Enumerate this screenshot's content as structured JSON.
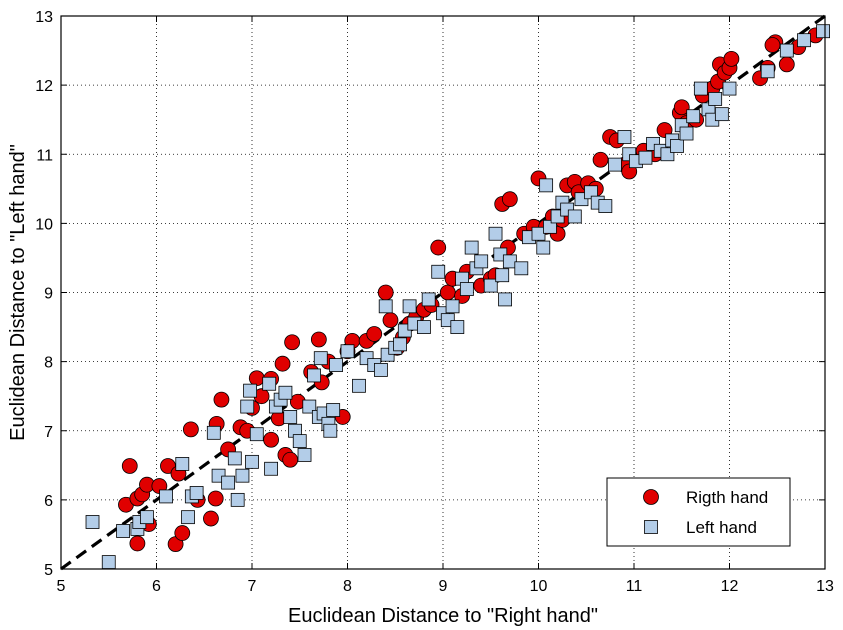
{
  "chart_data": {
    "type": "scatter",
    "title": "",
    "xlabel": "Euclidean Distance to \"Right hand\"",
    "ylabel": "Euclidean Distance to \"Left hand\"",
    "xlim": [
      5,
      13
    ],
    "ylim": [
      5,
      13
    ],
    "xticks": [
      "5",
      "6",
      "7",
      "8",
      "9",
      "10",
      "11",
      "12",
      "13"
    ],
    "yticks": [
      "5",
      "6",
      "7",
      "8",
      "9",
      "10",
      "11",
      "12",
      "13"
    ],
    "grid": true,
    "legend_position": "bottom-right",
    "reference_line": {
      "style": "dashed",
      "color": "#000000",
      "from": [
        5,
        5
      ],
      "to": [
        13,
        13
      ]
    },
    "series": [
      {
        "name": "Rigth hand",
        "marker": "circle",
        "color": "#e00000",
        "points": [
          [
            5.72,
            6.49
          ],
          [
            5.68,
            5.93
          ],
          [
            5.8,
            6.02
          ],
          [
            5.85,
            6.08
          ],
          [
            5.9,
            6.22
          ],
          [
            6.03,
            6.2
          ],
          [
            5.92,
            5.65
          ],
          [
            5.8,
            5.37
          ],
          [
            6.12,
            6.49
          ],
          [
            6.23,
            6.38
          ],
          [
            6.2,
            5.36
          ],
          [
            6.27,
            5.52
          ],
          [
            6.36,
            7.02
          ],
          [
            6.43,
            6.0
          ],
          [
            6.57,
            5.73
          ],
          [
            6.62,
            6.02
          ],
          [
            6.63,
            7.1
          ],
          [
            6.68,
            7.45
          ],
          [
            6.75,
            6.73
          ],
          [
            6.88,
            7.05
          ],
          [
            6.95,
            7.0
          ],
          [
            7.0,
            7.33
          ],
          [
            7.05,
            7.76
          ],
          [
            7.1,
            7.5
          ],
          [
            7.2,
            7.75
          ],
          [
            7.2,
            6.87
          ],
          [
            7.28,
            7.18
          ],
          [
            7.32,
            7.97
          ],
          [
            7.35,
            6.65
          ],
          [
            7.42,
            8.28
          ],
          [
            7.4,
            6.58
          ],
          [
            7.48,
            7.42
          ],
          [
            7.62,
            7.85
          ],
          [
            7.73,
            7.7
          ],
          [
            7.8,
            8.0
          ],
          [
            7.7,
            8.32
          ],
          [
            7.95,
            7.2
          ],
          [
            8.0,
            8.15
          ],
          [
            8.05,
            8.3
          ],
          [
            8.2,
            8.3
          ],
          [
            8.28,
            8.4
          ],
          [
            8.4,
            9.0
          ],
          [
            8.45,
            8.6
          ],
          [
            8.52,
            8.2
          ],
          [
            8.58,
            8.35
          ],
          [
            8.65,
            8.55
          ],
          [
            8.72,
            8.65
          ],
          [
            8.8,
            8.75
          ],
          [
            8.88,
            8.82
          ],
          [
            8.95,
            9.65
          ],
          [
            9.05,
            9.0
          ],
          [
            9.1,
            9.2
          ],
          [
            9.2,
            8.95
          ],
          [
            9.25,
            9.3
          ],
          [
            9.4,
            9.1
          ],
          [
            9.5,
            9.2
          ],
          [
            9.55,
            9.25
          ],
          [
            9.62,
            10.28
          ],
          [
            9.68,
            9.65
          ],
          [
            9.7,
            10.35
          ],
          [
            9.85,
            9.85
          ],
          [
            9.95,
            9.95
          ],
          [
            10.0,
            10.65
          ],
          [
            10.08,
            9.95
          ],
          [
            10.15,
            10.1
          ],
          [
            10.2,
            9.85
          ],
          [
            10.25,
            10.05
          ],
          [
            10.3,
            10.55
          ],
          [
            10.38,
            10.6
          ],
          [
            10.42,
            10.45
          ],
          [
            10.52,
            10.58
          ],
          [
            10.6,
            10.5
          ],
          [
            10.65,
            10.92
          ],
          [
            10.75,
            11.25
          ],
          [
            10.82,
            11.2
          ],
          [
            10.9,
            10.85
          ],
          [
            10.95,
            10.75
          ],
          [
            11.1,
            11.05
          ],
          [
            11.22,
            11.0
          ],
          [
            11.32,
            11.35
          ],
          [
            11.48,
            11.6
          ],
          [
            11.5,
            11.68
          ],
          [
            11.55,
            11.45
          ],
          [
            11.65,
            11.5
          ],
          [
            11.72,
            11.85
          ],
          [
            11.82,
            11.95
          ],
          [
            11.88,
            12.05
          ],
          [
            11.9,
            12.3
          ],
          [
            11.95,
            12.18
          ],
          [
            12.0,
            12.25
          ],
          [
            12.02,
            12.38
          ],
          [
            12.32,
            12.1
          ],
          [
            12.4,
            12.25
          ],
          [
            12.48,
            12.62
          ],
          [
            12.45,
            12.58
          ],
          [
            12.6,
            12.3
          ],
          [
            12.72,
            12.55
          ],
          [
            12.9,
            12.72
          ]
        ]
      },
      {
        "name": "Left hand",
        "marker": "square",
        "color": "#b3cde8",
        "points": [
          [
            5.33,
            5.68
          ],
          [
            5.5,
            5.1
          ],
          [
            5.65,
            5.55
          ],
          [
            5.8,
            5.58
          ],
          [
            5.82,
            5.68
          ],
          [
            5.9,
            5.75
          ],
          [
            6.1,
            6.05
          ],
          [
            6.27,
            6.52
          ],
          [
            6.33,
            5.75
          ],
          [
            6.37,
            6.05
          ],
          [
            6.42,
            6.1
          ],
          [
            6.6,
            6.97
          ],
          [
            6.65,
            6.35
          ],
          [
            6.75,
            6.25
          ],
          [
            6.82,
            6.6
          ],
          [
            6.85,
            6.0
          ],
          [
            6.9,
            6.35
          ],
          [
            6.95,
            7.35
          ],
          [
            6.98,
            7.58
          ],
          [
            7.0,
            6.55
          ],
          [
            7.05,
            6.95
          ],
          [
            7.18,
            7.68
          ],
          [
            7.2,
            6.45
          ],
          [
            7.25,
            7.35
          ],
          [
            7.3,
            7.45
          ],
          [
            7.35,
            7.55
          ],
          [
            7.4,
            7.2
          ],
          [
            7.45,
            7.0
          ],
          [
            7.5,
            6.85
          ],
          [
            7.55,
            6.65
          ],
          [
            7.6,
            7.35
          ],
          [
            7.65,
            7.8
          ],
          [
            7.7,
            7.2
          ],
          [
            7.72,
            8.05
          ],
          [
            7.75,
            7.25
          ],
          [
            7.8,
            7.1
          ],
          [
            7.82,
            7.0
          ],
          [
            7.85,
            7.3
          ],
          [
            7.88,
            7.95
          ],
          [
            8.0,
            8.15
          ],
          [
            8.12,
            7.65
          ],
          [
            8.2,
            8.05
          ],
          [
            8.28,
            7.95
          ],
          [
            8.35,
            7.88
          ],
          [
            8.4,
            8.8
          ],
          [
            8.42,
            8.1
          ],
          [
            8.5,
            8.2
          ],
          [
            8.55,
            8.25
          ],
          [
            8.6,
            8.45
          ],
          [
            8.65,
            8.8
          ],
          [
            8.7,
            8.55
          ],
          [
            8.8,
            8.5
          ],
          [
            8.85,
            8.9
          ],
          [
            8.95,
            9.3
          ],
          [
            9.0,
            8.7
          ],
          [
            9.05,
            8.6
          ],
          [
            9.1,
            8.8
          ],
          [
            9.15,
            8.5
          ],
          [
            9.2,
            9.2
          ],
          [
            9.25,
            9.05
          ],
          [
            9.3,
            9.65
          ],
          [
            9.35,
            9.35
          ],
          [
            9.4,
            9.45
          ],
          [
            9.5,
            9.1
          ],
          [
            9.55,
            9.85
          ],
          [
            9.6,
            9.55
          ],
          [
            9.62,
            9.25
          ],
          [
            9.65,
            8.9
          ],
          [
            9.7,
            9.45
          ],
          [
            9.82,
            9.35
          ],
          [
            9.9,
            9.8
          ],
          [
            10.0,
            9.85
          ],
          [
            10.05,
            9.65
          ],
          [
            10.08,
            10.55
          ],
          [
            10.12,
            9.95
          ],
          [
            10.2,
            10.1
          ],
          [
            10.25,
            10.3
          ],
          [
            10.3,
            10.2
          ],
          [
            10.38,
            10.1
          ],
          [
            10.45,
            10.35
          ],
          [
            10.55,
            10.45
          ],
          [
            10.62,
            10.3
          ],
          [
            10.7,
            10.25
          ],
          [
            10.8,
            10.85
          ],
          [
            10.9,
            11.25
          ],
          [
            10.95,
            11.0
          ],
          [
            11.02,
            10.9
          ],
          [
            11.12,
            10.95
          ],
          [
            11.2,
            11.15
          ],
          [
            11.28,
            11.05
          ],
          [
            11.35,
            11.0
          ],
          [
            11.4,
            11.2
          ],
          [
            11.45,
            11.12
          ],
          [
            11.5,
            11.42
          ],
          [
            11.55,
            11.3
          ],
          [
            11.62,
            11.55
          ],
          [
            11.7,
            11.95
          ],
          [
            11.78,
            11.65
          ],
          [
            11.82,
            11.5
          ],
          [
            11.85,
            11.8
          ],
          [
            11.92,
            11.58
          ],
          [
            12.0,
            11.95
          ],
          [
            12.4,
            12.2
          ],
          [
            12.6,
            12.5
          ],
          [
            12.78,
            12.65
          ],
          [
            12.98,
            12.78
          ]
        ]
      }
    ]
  }
}
